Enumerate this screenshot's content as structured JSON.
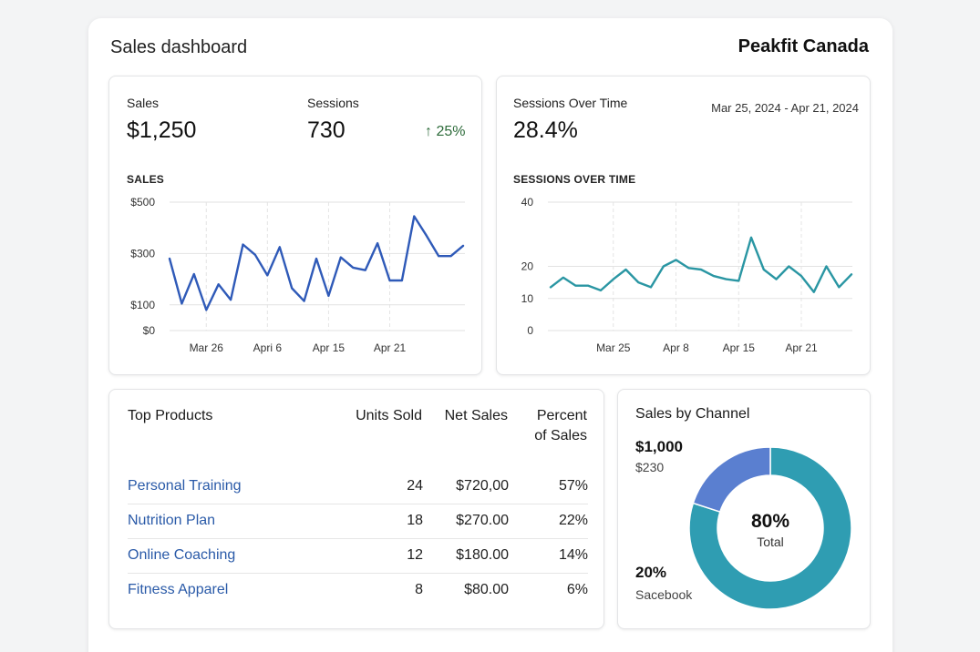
{
  "header": {
    "title": "Sales dashboard",
    "store": "Peakfit Canada"
  },
  "sales_card": {
    "sales_label": "Sales",
    "sales_value": "$1,250",
    "sessions_label": "Sessions",
    "sessions_value": "730",
    "trend_arrow": "↑",
    "trend_value": "25%",
    "chart_title": "SALES"
  },
  "sessions_card": {
    "title": "Sessions Over Time",
    "value": "28.4%",
    "date_range": "Mar 25, 2024 - Apr 21, 2024",
    "chart_title": "SESSIONS OVER TIME"
  },
  "colors": {
    "sales_line": "#2f5ab8",
    "sessions_line": "#2a96a3",
    "donut_teal": "#2f9db2",
    "donut_blue": "#5a7fd0",
    "link": "#2a5aa8",
    "trend_up": "#2d6b3a"
  },
  "chart_data": [
    {
      "type": "line",
      "title": "SALES",
      "ylim": [
        0,
        500
      ],
      "yticks": [
        0,
        100,
        300,
        500
      ],
      "ytick_labels": [
        "$0",
        "$100",
        "$300",
        "$500"
      ],
      "xtick_labels": [
        "Mar 26",
        "Apri 6",
        "Apr 15",
        "Apr 21"
      ],
      "xtick_positions": [
        3,
        8,
        13,
        18
      ],
      "series": [
        {
          "name": "Sales",
          "values": [
            280,
            105,
            220,
            80,
            180,
            120,
            335,
            295,
            215,
            325,
            165,
            115,
            280,
            135,
            285,
            245,
            235,
            340,
            195,
            195,
            445,
            370,
            290,
            290,
            330
          ]
        }
      ]
    },
    {
      "type": "line",
      "title": "SESSIONS OVER TIME",
      "ylim": [
        0,
        40
      ],
      "yticks": [
        0,
        10,
        20,
        40
      ],
      "ytick_labels": [
        "0",
        "10",
        "20",
        "40"
      ],
      "xtick_labels": [
        "Mar 25",
        "Apr 8",
        "Apr 15",
        "Apr 21"
      ],
      "xtick_positions": [
        5,
        10,
        15,
        20
      ],
      "series": [
        {
          "name": "Sessions",
          "values": [
            13.5,
            16.5,
            14,
            14,
            12.5,
            16,
            19,
            15,
            13.5,
            20,
            22,
            19.5,
            19,
            17,
            16,
            15.5,
            29,
            19,
            16,
            20,
            17,
            12,
            20,
            13.5,
            17.5
          ]
        }
      ]
    },
    {
      "type": "pie",
      "title": "Sales by Channel",
      "labels": [
        "Total",
        "Sacebook"
      ],
      "values": [
        80,
        20
      ],
      "center_value": "80%",
      "center_label": "Total"
    }
  ],
  "products": {
    "title": "Top Products",
    "columns": {
      "units": "Units Sold",
      "net": "Net Sales",
      "pct_1": "Percent",
      "pct_2": "of Sales"
    },
    "rows": [
      {
        "name": "Personal Training",
        "units": "24",
        "net": "$720,00",
        "pct": "57%"
      },
      {
        "name": "Nutrition Plan",
        "units": "18",
        "net": "$270.00",
        "pct": "22%"
      },
      {
        "name": "Online Coaching",
        "units": "12",
        "net": "$180.00",
        "pct": "14%"
      },
      {
        "name": "Fitness Apparel",
        "units": "8",
        "net": "$80.00",
        "pct": "6%"
      }
    ]
  },
  "channel": {
    "title": "Sales by Channel",
    "big_value": "$1,000",
    "sub_value": "$230",
    "lower_value": "20%",
    "lower_label": "Sacebook",
    "center_value": "80%",
    "center_label": "Total"
  }
}
